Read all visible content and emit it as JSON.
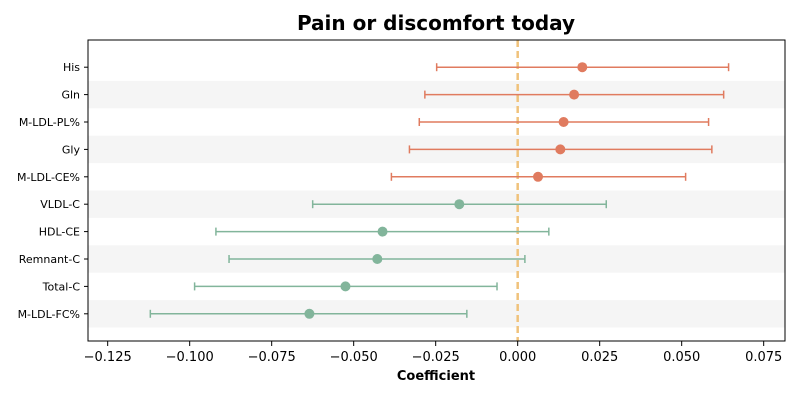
{
  "chart_data": {
    "type": "forest",
    "title": "Pain or discomfort today",
    "xlabel": "Coefficient",
    "xlim": [
      -0.131,
      0.0815
    ],
    "xticks": [
      -0.125,
      -0.1,
      -0.075,
      -0.05,
      -0.025,
      0.0,
      0.025,
      0.05,
      0.075
    ],
    "xtick_labels": [
      "−0.125",
      "−0.100",
      "−0.075",
      "−0.050",
      "−0.025",
      "0.000",
      "0.025",
      "0.050",
      "0.075"
    ],
    "reference_line": 0.0,
    "colors": {
      "positive": "#e07b5f",
      "negative": "#82b59b",
      "reference": "#f0c27b",
      "stripe": "#f5f5f5"
    },
    "points": [
      {
        "label": "His",
        "coef": 0.0197,
        "lower": -0.0247,
        "upper": 0.0643
      },
      {
        "label": "Gln",
        "coef": 0.0172,
        "lower": -0.0283,
        "upper": 0.0628
      },
      {
        "label": "M-LDL-PL%",
        "coef": 0.014,
        "lower": -0.03,
        "upper": 0.0582
      },
      {
        "label": "Gly",
        "coef": 0.013,
        "lower": -0.033,
        "upper": 0.0592
      },
      {
        "label": "M-LDL-CE%",
        "coef": 0.0062,
        "lower": -0.0385,
        "upper": 0.0512
      },
      {
        "label": "VLDL-C",
        "coef": -0.0178,
        "lower": -0.0625,
        "upper": 0.027
      },
      {
        "label": "HDL-CE",
        "coef": -0.0412,
        "lower": -0.092,
        "upper": 0.0095
      },
      {
        "label": "Remnant-C",
        "coef": -0.0428,
        "lower": -0.088,
        "upper": 0.0022
      },
      {
        "label": "Total-C",
        "coef": -0.0525,
        "lower": -0.0985,
        "upper": -0.0063
      },
      {
        "label": "M-LDL-FC%",
        "coef": -0.0635,
        "lower": -0.112,
        "upper": -0.0155
      }
    ]
  }
}
